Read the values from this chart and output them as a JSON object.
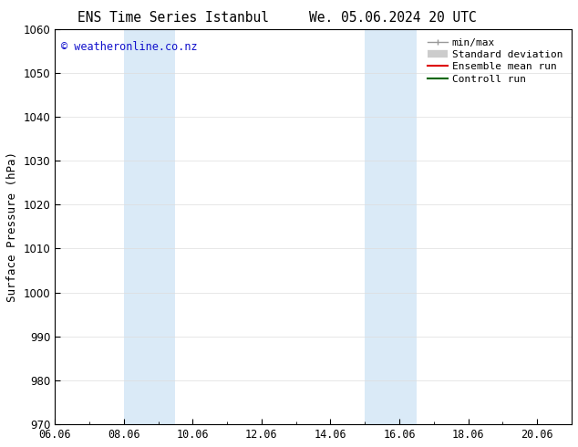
{
  "title_left": "ENS Time Series Istanbul",
  "title_right": "We. 05.06.2024 20 UTC",
  "ylabel": "Surface Pressure (hPa)",
  "ylim": [
    970,
    1060
  ],
  "yticks": [
    970,
    980,
    990,
    1000,
    1010,
    1020,
    1030,
    1040,
    1050,
    1060
  ],
  "xlim": [
    0.0,
    15.0
  ],
  "xtick_labels": [
    "06.06",
    "08.06",
    "10.06",
    "12.06",
    "14.06",
    "16.06",
    "18.06",
    "20.06"
  ],
  "xtick_positions": [
    0,
    2,
    4,
    6,
    8,
    10,
    12,
    14
  ],
  "shade_bands": [
    {
      "xmin": 2.0,
      "xmax": 3.5
    },
    {
      "xmin": 9.0,
      "xmax": 10.5
    }
  ],
  "shade_color": "#daeaf7",
  "copyright_text": "© weatheronline.co.nz",
  "copyright_color": "#1111cc",
  "legend_items": [
    {
      "label": "min/max",
      "color": "#aaaaaa",
      "lw": 1.0
    },
    {
      "label": "Standard deviation",
      "color": "#cccccc",
      "lw": 6.0
    },
    {
      "label": "Ensemble mean run",
      "color": "#dd0000",
      "lw": 1.5
    },
    {
      "label": "Controll run",
      "color": "#006600",
      "lw": 1.5
    }
  ],
  "bg_color": "#ffffff",
  "spine_color": "#000000",
  "tick_color": "#000000",
  "title_fontsize": 10.5,
  "ylabel_fontsize": 9,
  "tick_fontsize": 8.5,
  "legend_fontsize": 8,
  "copyright_fontsize": 8.5
}
